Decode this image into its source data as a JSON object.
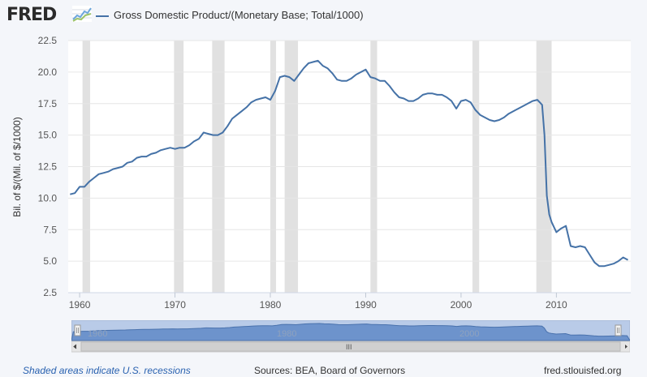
{
  "header": {
    "logo_text": "FRED",
    "legend_label": "Gross Domestic Product/(Monetary Base; Total/1000)",
    "series_color": "#4572a7"
  },
  "footer": {
    "recession_note": "Shaded areas indicate U.S. recessions",
    "sources": "Sources: BEA, Board of Governors",
    "site": "fred.stlouisfed.org"
  },
  "navigator": {
    "tick_labels": [
      "1960",
      "1980",
      "2000"
    ],
    "scroll_grip": "III"
  },
  "chart_data": {
    "type": "line",
    "title": "",
    "ylabel": "Bil. of $/(Mil. of $/1000)",
    "xlabel": "",
    "xlim": [
      1958.8,
      2017.8
    ],
    "ylim": [
      2.5,
      22.5
    ],
    "yticks": [
      "2.5",
      "5.0",
      "7.5",
      "10.0",
      "12.5",
      "15.0",
      "17.5",
      "20.0",
      "22.5"
    ],
    "xticks": [
      "1960",
      "1970",
      "1980",
      "1990",
      "2000",
      "2010"
    ],
    "grid": "horizontal",
    "recessions": [
      [
        1960.3,
        1961.1
      ],
      [
        1969.9,
        1970.9
      ],
      [
        1973.9,
        1975.2
      ],
      [
        1980.0,
        1980.6
      ],
      [
        1981.5,
        1982.9
      ],
      [
        1990.5,
        1991.2
      ],
      [
        2001.2,
        2001.9
      ],
      [
        2007.9,
        2009.5
      ]
    ],
    "series": [
      {
        "x": [
          1959.0,
          1959.5,
          1960.0,
          1960.5,
          1961.0,
          1961.5,
          1962.0,
          1962.5,
          1963.0,
          1963.5,
          1964.0,
          1964.5,
          1965.0,
          1965.5,
          1966.0,
          1966.5,
          1967.0,
          1967.5,
          1968.0,
          1968.5,
          1969.0,
          1969.5,
          1970.0,
          1970.5,
          1971.0,
          1971.5,
          1972.0,
          1972.5,
          1973.0,
          1973.5,
          1974.0,
          1974.5,
          1975.0,
          1975.5,
          1976.0,
          1976.5,
          1977.0,
          1977.5,
          1978.0,
          1978.5,
          1979.0,
          1979.5,
          1980.0,
          1980.5,
          1981.0,
          1981.5,
          1982.0,
          1982.5,
          1983.0,
          1983.5,
          1984.0,
          1984.5,
          1985.0,
          1985.5,
          1986.0,
          1986.5,
          1987.0,
          1987.5,
          1988.0,
          1988.5,
          1989.0,
          1989.5,
          1990.0,
          1990.5,
          1991.0,
          1991.5,
          1992.0,
          1992.5,
          1993.0,
          1993.5,
          1994.0,
          1994.5,
          1995.0,
          1995.5,
          1996.0,
          1996.5,
          1997.0,
          1997.5,
          1998.0,
          1998.5,
          1999.0,
          1999.5,
          2000.0,
          2000.5,
          2001.0,
          2001.5,
          2002.0,
          2002.5,
          2003.0,
          2003.5,
          2004.0,
          2004.5,
          2005.0,
          2005.5,
          2006.0,
          2006.5,
          2007.0,
          2007.5,
          2008.0,
          2008.5,
          2008.75,
          2009.0,
          2009.25,
          2009.5,
          2010.0,
          2010.5,
          2011.0,
          2011.5,
          2012.0,
          2012.5,
          2013.0,
          2013.5,
          2014.0,
          2014.5,
          2015.0,
          2015.5,
          2016.0,
          2016.5,
          2017.0,
          2017.5
        ],
        "values": [
          10.3,
          10.4,
          10.9,
          10.9,
          11.3,
          11.6,
          11.9,
          12.0,
          12.1,
          12.3,
          12.4,
          12.5,
          12.8,
          12.9,
          13.2,
          13.3,
          13.3,
          13.5,
          13.6,
          13.8,
          13.9,
          14.0,
          13.9,
          14.0,
          14.0,
          14.2,
          14.5,
          14.7,
          15.2,
          15.1,
          15.0,
          15.0,
          15.2,
          15.7,
          16.3,
          16.6,
          16.9,
          17.2,
          17.6,
          17.8,
          17.9,
          18.0,
          17.8,
          18.5,
          19.6,
          19.7,
          19.6,
          19.3,
          19.8,
          20.3,
          20.7,
          20.8,
          20.9,
          20.5,
          20.3,
          19.9,
          19.4,
          19.3,
          19.3,
          19.5,
          19.8,
          20.0,
          20.2,
          19.6,
          19.5,
          19.3,
          19.3,
          18.9,
          18.4,
          18.0,
          17.9,
          17.7,
          17.7,
          17.9,
          18.2,
          18.3,
          18.3,
          18.2,
          18.2,
          18.0,
          17.7,
          17.1,
          17.7,
          17.8,
          17.6,
          17.0,
          16.6,
          16.4,
          16.2,
          16.1,
          16.2,
          16.4,
          16.7,
          16.9,
          17.1,
          17.3,
          17.5,
          17.7,
          17.8,
          17.4,
          15.0,
          10.2,
          8.7,
          8.1,
          7.3,
          7.6,
          7.8,
          6.2,
          6.1,
          6.2,
          6.1,
          5.5,
          4.9,
          4.6,
          4.6,
          4.7,
          4.8,
          5.0,
          5.3,
          5.1
        ]
      }
    ]
  }
}
